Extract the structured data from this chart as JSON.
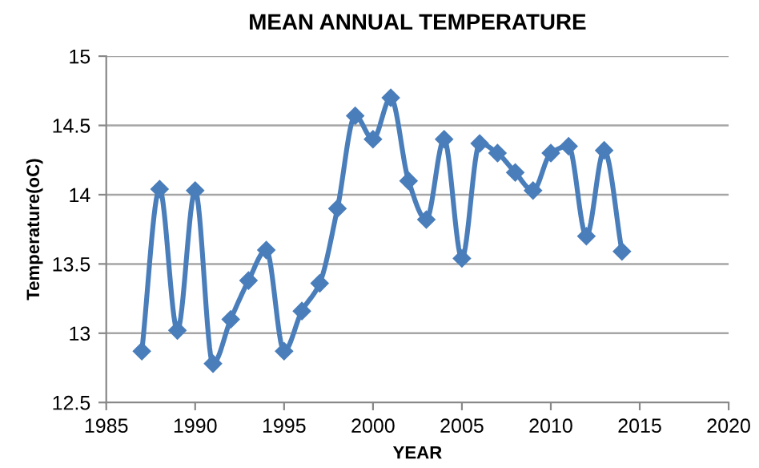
{
  "chart_data": {
    "type": "line",
    "title": "MEAN ANNUAL TEMPERATURE",
    "xlabel": "YEAR",
    "ylabel": "Temperature(oC)",
    "x": [
      1987,
      1988,
      1989,
      1990,
      1991,
      1992,
      1993,
      1994,
      1995,
      1996,
      1997,
      1998,
      1999,
      2000,
      2001,
      2002,
      2003,
      2004,
      2005,
      2006,
      2007,
      2008,
      2009,
      2010,
      2011,
      2012,
      2013,
      2014
    ],
    "series": [
      {
        "color": "#4a7ebb",
        "values": [
          12.87,
          14.04,
          13.02,
          14.03,
          12.78,
          13.1,
          13.38,
          13.6,
          12.87,
          13.16,
          13.36,
          13.9,
          14.57,
          14.4,
          14.7,
          14.1,
          13.82,
          14.4,
          13.54,
          14.37,
          14.3,
          14.16,
          14.03,
          14.3,
          14.35,
          13.7,
          14.32,
          13.59
        ]
      }
    ],
    "xlim": [
      1985,
      2020
    ],
    "xticks": [
      1985,
      1990,
      1995,
      2000,
      2005,
      2010,
      2015,
      2020
    ],
    "ylim": [
      12.5,
      15
    ],
    "yticks": [
      12.5,
      13,
      13.5,
      14,
      14.5,
      15
    ],
    "grid": "y",
    "marker": "diamond",
    "line_style": "solid",
    "legend": false
  }
}
